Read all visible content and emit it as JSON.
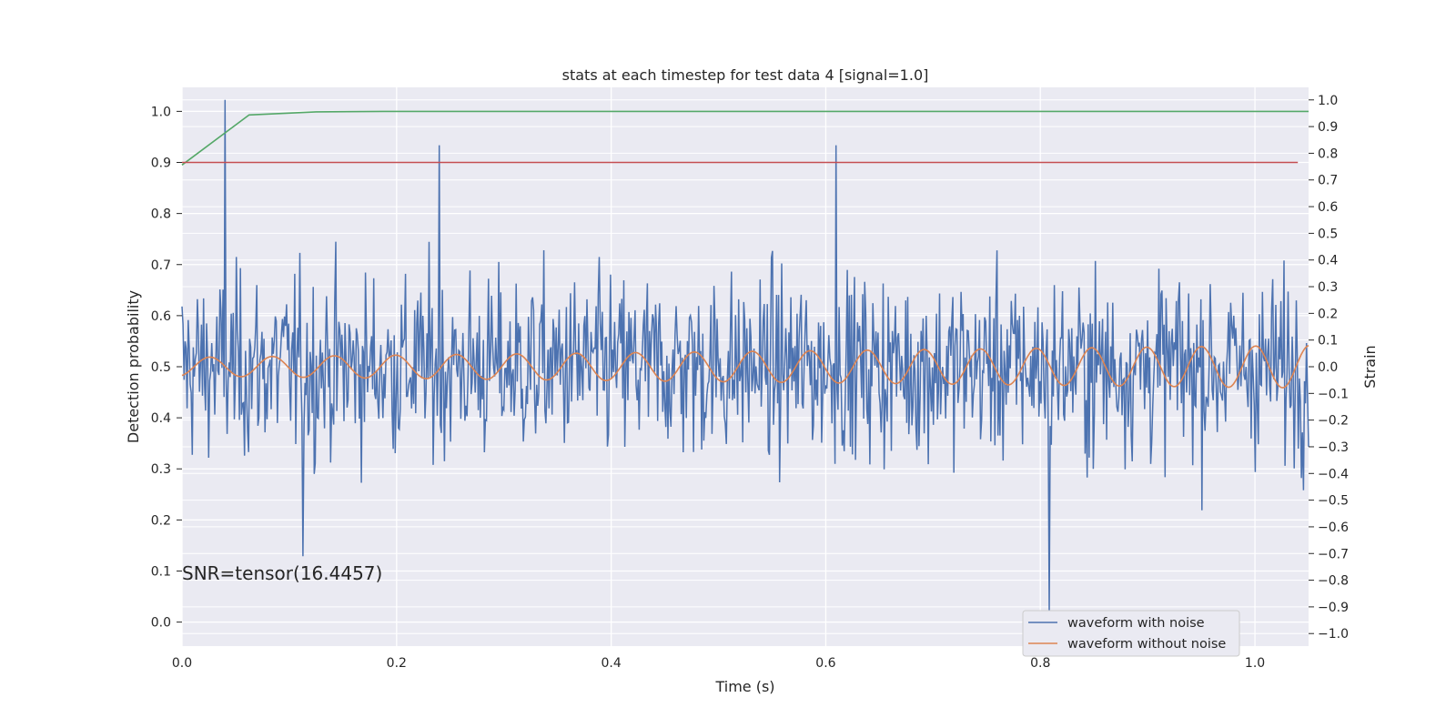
{
  "chart_data": {
    "type": "line",
    "title": "stats at each timestep for test data 4 [signal=1.0]",
    "xlabel": "Time (s)",
    "ylabel": "Detection probability",
    "y2label": "Strain",
    "xlim": [
      0.0,
      1.05
    ],
    "ylim": [
      -0.047,
      1.047
    ],
    "y2lim": [
      -1.047,
      1.047
    ],
    "x_ticks": [
      "0.0",
      "0.2",
      "0.4",
      "0.6",
      "0.8",
      "1.0"
    ],
    "y_ticks": [
      "0.0",
      "0.1",
      "0.2",
      "0.3",
      "0.4",
      "0.5",
      "0.6",
      "0.7",
      "0.8",
      "0.9",
      "1.0"
    ],
    "y2_ticks": [
      "-1.0",
      "-0.9",
      "-0.8",
      "-0.7",
      "-0.6",
      "-0.5",
      "-0.4",
      "-0.3",
      "-0.2",
      "-0.1",
      "0.0",
      "0.1",
      "0.2",
      "0.3",
      "0.4",
      "0.5",
      "0.6",
      "0.7",
      "0.8",
      "0.9",
      "1.0"
    ],
    "grid": true,
    "legend_position": "lower-right",
    "annotation": "SNR=tensor(16.4457)",
    "colors": {
      "background": "#eaeaf2",
      "grid": "#ffffff",
      "noisy": "#4c72b0",
      "clean": "#dd8452",
      "probability": "#55a868",
      "threshold": "#c44e52"
    },
    "series": [
      {
        "name": "waveform with noise",
        "axis": "right",
        "x_range": [
          0.0,
          1.05
        ],
        "points": 1100,
        "peaks": [
          [
            0.04,
            1.0
          ],
          [
            0.61,
            0.83
          ],
          [
            0.24,
            0.83
          ],
          [
            0.808,
            -0.92
          ],
          [
            0.113,
            -0.71
          ]
        ]
      },
      {
        "name": "waveform without noise",
        "axis": "right",
        "x_range": [
          0.0,
          1.05
        ],
        "points": 600,
        "amplitude_start": 0.035,
        "amplitude_end": 0.08,
        "frequency_start": 17,
        "frequency_end": 20,
        "offset": 0.0
      },
      {
        "axis": "left",
        "x": [
          0.0,
          0.0625,
          0.125,
          0.1875,
          0.25,
          0.5,
          0.75,
          1.0,
          1.05
        ],
        "y": [
          0.895,
          0.993,
          0.999,
          1.0,
          1.0,
          1.0,
          1.0,
          1.0,
          1.0
        ]
      },
      {
        "axis": "left",
        "x": [
          0.0,
          1.04
        ],
        "y": [
          0.9,
          0.9
        ]
      }
    ]
  }
}
